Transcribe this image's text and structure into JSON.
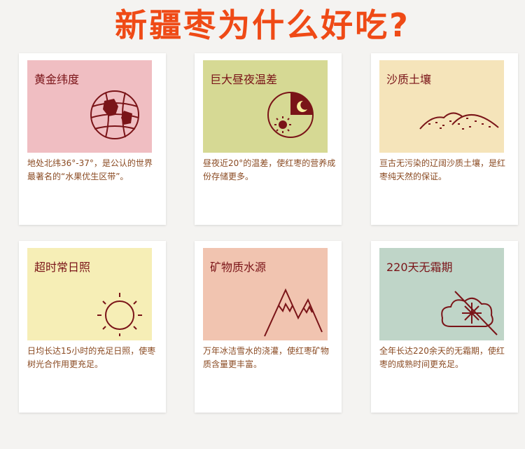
{
  "title": "新疆枣为什么好吃?",
  "cards": [
    {
      "label": "黄金纬度",
      "desc": "地处北纬36°-37°，是公认的世界最著名的“水果优生区带”。",
      "color": "#f0bec2"
    },
    {
      "label": "巨大昼夜温差",
      "desc": "昼夜近20°的温差，使红枣的营养成份存储更多。",
      "color": "#d6d994"
    },
    {
      "label": "沙质土壤",
      "desc": "亘古无污染的辽阔沙质土壤，是红枣纯天然的保证。",
      "color": "#f5e4ba"
    },
    {
      "label": "超时常日照",
      "desc": "日均长达15小时的充足日照，使枣树光合作用更充足。",
      "color": "#f6eeb6"
    },
    {
      "label": "矿物质水源",
      "desc": "万年冰洁雪水的浇灌，使红枣矿物质含量更丰富。",
      "color": "#f1c4b0"
    },
    {
      "label": "220天无霜期",
      "desc": "全年长达220余天的无霜期，使红枣的成熟时间更充足。",
      "color": "#bfd5c8"
    }
  ]
}
